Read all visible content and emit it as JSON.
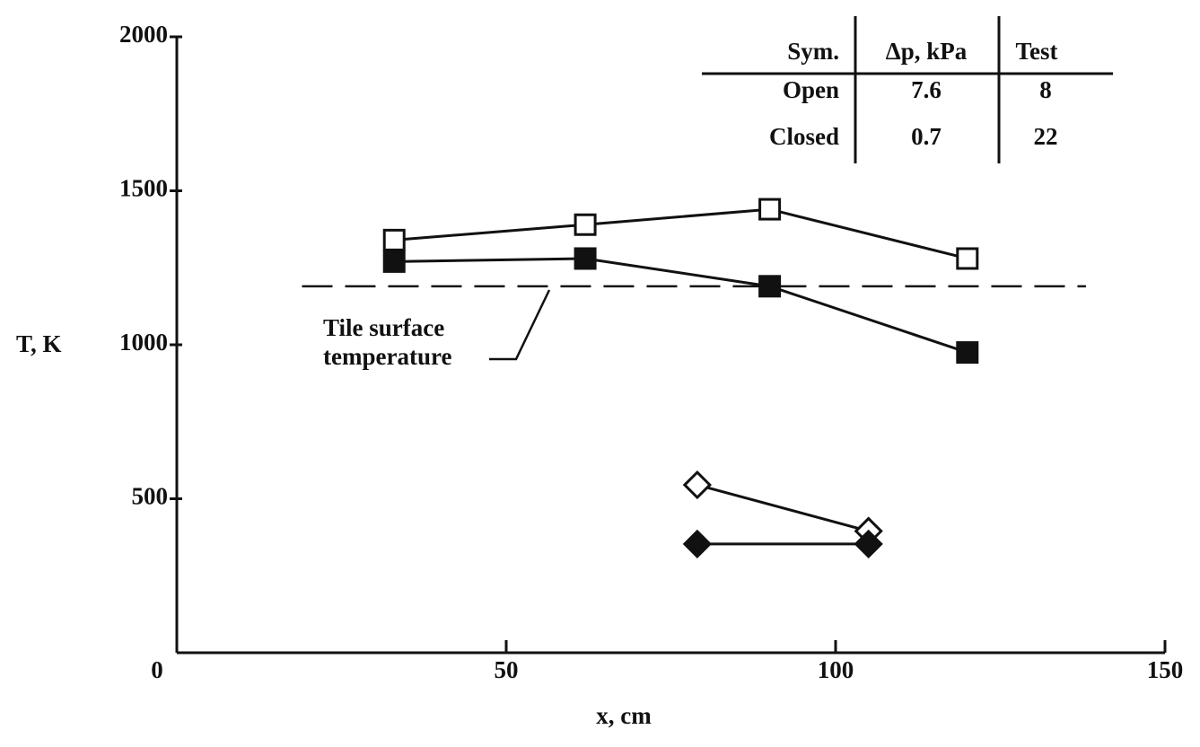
{
  "chart_data": {
    "type": "line",
    "xlabel": "x, cm",
    "ylabel": "T, K",
    "xlim": [
      0,
      150
    ],
    "xticks": [
      0,
      50,
      100,
      150
    ],
    "ylim": [
      0,
      2000
    ],
    "yticks": [
      500,
      1000,
      1500,
      2000
    ],
    "series": [
      {
        "marker": "square",
        "filled": false,
        "color": "#111111",
        "x": [
          33,
          62,
          90,
          120
        ],
        "values": [
          1340,
          1390,
          1440,
          1280
        ]
      },
      {
        "marker": "square",
        "filled": true,
        "color": "#111111",
        "x": [
          33,
          62,
          90,
          120
        ],
        "values": [
          1270,
          1280,
          1190,
          975
        ]
      },
      {
        "marker": "diamond",
        "filled": false,
        "color": "#111111",
        "x": [
          79,
          105
        ],
        "values": [
          545,
          395
        ]
      },
      {
        "marker": "diamond",
        "filled": true,
        "color": "#111111",
        "x": [
          79,
          105
        ],
        "values": [
          353,
          353
        ]
      }
    ],
    "reference_line": {
      "y": 1190,
      "x": [
        19,
        138
      ],
      "label_lines": [
        "Tile surface",
        "temperature"
      ]
    },
    "table": {
      "header": [
        "Sym.",
        "Δp, kPa",
        "Test"
      ],
      "rows": [
        [
          "Open",
          "7.6",
          "8"
        ],
        [
          "Closed",
          "0.7",
          "22"
        ]
      ]
    }
  }
}
